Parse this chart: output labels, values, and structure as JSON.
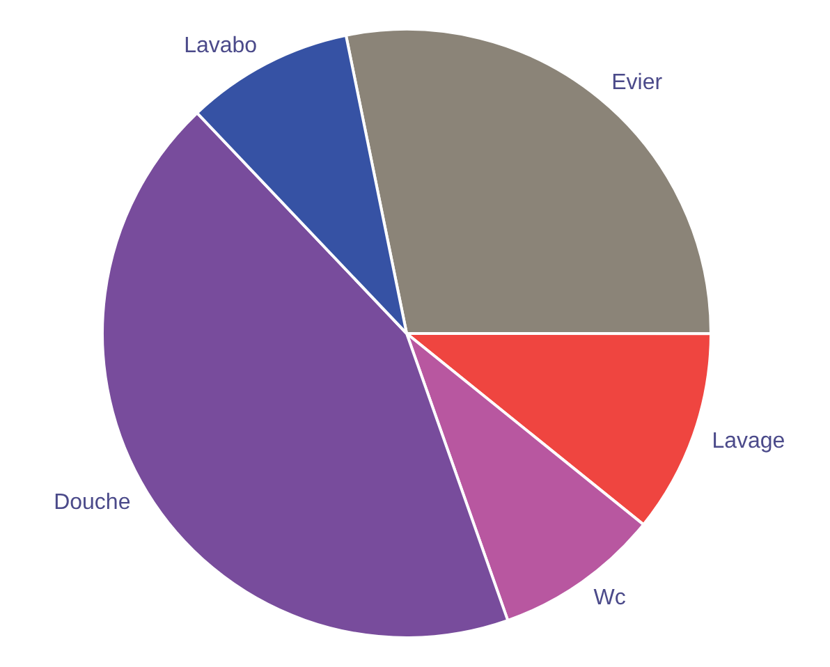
{
  "chart_data": {
    "type": "pie",
    "categories": [
      "Evier",
      "Lavage",
      "Wc",
      "Douche",
      "Lavabo"
    ],
    "values": [
      28.2,
      10.8,
      8.8,
      43.3,
      8.9
    ],
    "colors": [
      "#8b8478",
      "#ef4540",
      "#b857a0",
      "#784c9c",
      "#3652a4"
    ],
    "legend": false
  }
}
